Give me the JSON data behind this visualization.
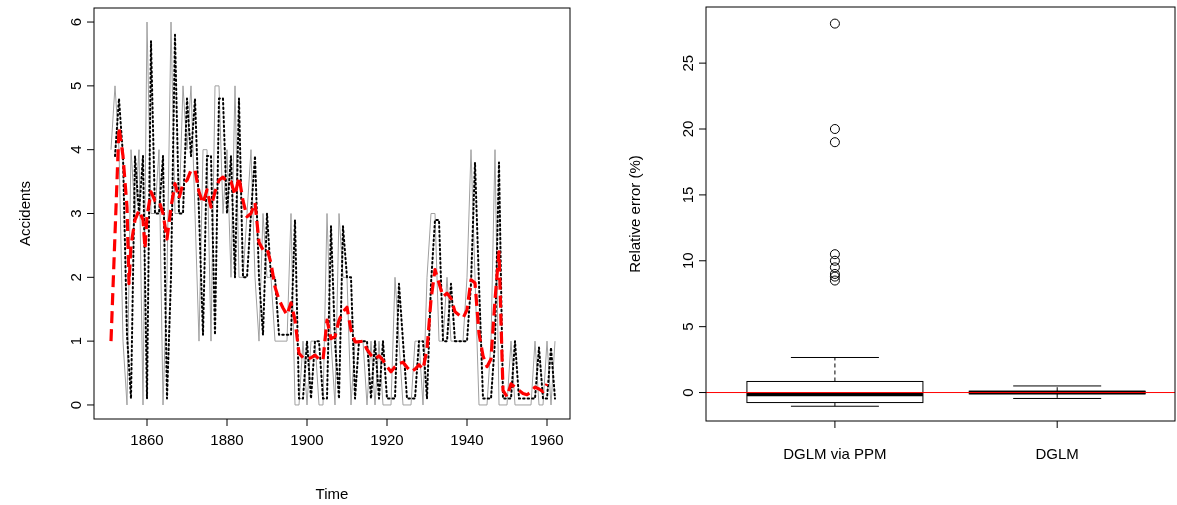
{
  "chart_data": [
    {
      "type": "line",
      "xlabel": "Time",
      "ylabel": "Accidents",
      "xlim": [
        1846.75,
        1965.75
      ],
      "xticks": [
        1860,
        1880,
        1900,
        1920,
        1940,
        1960
      ],
      "ylim": [
        -0.22,
        6.22
      ],
      "yticks": [
        0,
        1,
        2,
        3,
        4,
        5,
        6
      ],
      "x": [
        1851,
        1852,
        1853,
        1854,
        1855,
        1856,
        1857,
        1858,
        1859,
        1860,
        1861,
        1862,
        1863,
        1864,
        1865,
        1866,
        1867,
        1868,
        1869,
        1870,
        1871,
        1872,
        1873,
        1874,
        1875,
        1876,
        1877,
        1878,
        1879,
        1880,
        1881,
        1882,
        1883,
        1884,
        1885,
        1886,
        1887,
        1888,
        1889,
        1890,
        1891,
        1892,
        1893,
        1894,
        1895,
        1896,
        1897,
        1898,
        1899,
        1900,
        1901,
        1902,
        1903,
        1904,
        1905,
        1906,
        1907,
        1908,
        1909,
        1910,
        1911,
        1912,
        1913,
        1914,
        1915,
        1916,
        1917,
        1918,
        1919,
        1920,
        1921,
        1922,
        1923,
        1924,
        1925,
        1926,
        1927,
        1928,
        1929,
        1930,
        1931,
        1932,
        1933,
        1934,
        1935,
        1936,
        1937,
        1938,
        1939,
        1940,
        1941,
        1942,
        1943,
        1944,
        1945,
        1946,
        1947,
        1948,
        1949,
        1950,
        1951,
        1952,
        1953,
        1954,
        1955,
        1956,
        1957,
        1958,
        1959,
        1960,
        1961,
        1962
      ],
      "series": [
        {
          "color": "#a0a0a0",
          "line_style": "solid",
          "values": [
            4,
            5,
            4,
            1,
            0,
            4,
            3,
            4,
            0,
            6,
            3,
            3,
            4,
            0,
            2,
            6,
            3,
            3,
            5,
            4,
            5,
            3,
            1,
            4,
            4,
            1,
            5,
            5,
            3,
            4,
            2,
            5,
            2,
            2,
            3,
            4,
            2,
            1,
            3,
            2,
            2,
            1,
            1,
            1,
            1,
            3,
            0,
            0,
            1,
            0,
            1,
            1,
            0,
            0,
            3,
            1,
            0,
            3,
            2,
            2,
            0,
            1,
            1,
            1,
            0,
            1,
            0,
            1,
            0,
            0,
            0,
            2,
            1,
            0,
            0,
            0,
            1,
            1,
            0,
            2,
            3,
            3,
            1,
            1,
            2,
            1,
            1,
            1,
            1,
            2,
            4,
            2,
            0,
            0,
            0,
            1,
            4,
            0,
            0,
            0,
            1,
            0,
            0,
            0,
            0,
            0,
            1,
            0,
            0,
            1,
            0,
            1
          ]
        },
        {
          "color": "#000000",
          "line_style": "dotted",
          "x": [
            1852,
            1853,
            1854,
            1855,
            1856,
            1857,
            1858,
            1859,
            1860,
            1861,
            1862,
            1863,
            1864,
            1865,
            1866,
            1867,
            1868,
            1869,
            1870,
            1871,
            1872,
            1873,
            1874,
            1875,
            1876,
            1877,
            1878,
            1879,
            1880,
            1881,
            1882,
            1883,
            1884,
            1885,
            1886,
            1887,
            1888,
            1889,
            1890,
            1891,
            1892,
            1893,
            1894,
            1895,
            1896,
            1897,
            1898,
            1899,
            1900,
            1901,
            1902,
            1903,
            1904,
            1905,
            1906,
            1907,
            1908,
            1909,
            1910,
            1911,
            1912,
            1913,
            1914,
            1915,
            1916,
            1917,
            1918,
            1919,
            1920,
            1921,
            1922,
            1923,
            1924,
            1925,
            1926,
            1927,
            1928,
            1929,
            1930,
            1931,
            1932,
            1933,
            1934,
            1935,
            1936,
            1937,
            1938,
            1939,
            1940,
            1941,
            1942,
            1943,
            1944,
            1945,
            1946,
            1947,
            1948,
            1949,
            1950,
            1951,
            1952,
            1953,
            1954,
            1955,
            1956,
            1957,
            1958,
            1959,
            1960,
            1961,
            1962
          ],
          "values": [
            3.9,
            4.8,
            3.9,
            1.1,
            0.1,
            3.9,
            3,
            3.9,
            0.1,
            5.7,
            3,
            3,
            3.9,
            0.1,
            2,
            5.8,
            3,
            3,
            4.8,
            3.9,
            4.8,
            3,
            1.1,
            3.9,
            3.9,
            1.1,
            4.8,
            4.8,
            3,
            3.9,
            2,
            4.8,
            2,
            2,
            3,
            3.9,
            2,
            1.1,
            3,
            2,
            2,
            1.1,
            1.1,
            1.1,
            1.1,
            2.9,
            0.1,
            0.1,
            1,
            0.1,
            1,
            1,
            0.1,
            0.1,
            2.8,
            1,
            0.1,
            2.8,
            2,
            2,
            0.1,
            1,
            1,
            1,
            0.1,
            1,
            0.1,
            1,
            0.1,
            0.1,
            0.1,
            1.9,
            1,
            0.1,
            0.1,
            0.1,
            1,
            1,
            0.1,
            1.9,
            2.9,
            2.9,
            1,
            1,
            1.9,
            1,
            1,
            1,
            1,
            1.9,
            3.8,
            1.9,
            0.1,
            0.1,
            0.1,
            1,
            3.8,
            0.1,
            0.1,
            0.1,
            1,
            0.1,
            0.1,
            0.1,
            0.1,
            0.1,
            0.9,
            0.1,
            0.1,
            0.9,
            0.1
          ]
        },
        {
          "color": "#ff0000",
          "line_style": "dashed",
          "x": [
            1851,
            1853,
            1854,
            1855,
            1855.5,
            1856,
            1857,
            1858,
            1859,
            1859.5,
            1860,
            1861,
            1862,
            1863,
            1864,
            1865,
            1866,
            1867,
            1868,
            1869,
            1870,
            1871,
            1872,
            1873,
            1874,
            1875,
            1876,
            1877,
            1878,
            1879,
            1880,
            1881,
            1882,
            1883,
            1884,
            1885,
            1886,
            1887,
            1888,
            1889,
            1890,
            1891,
            1892,
            1893,
            1894,
            1895,
            1896,
            1897,
            1898,
            1899,
            1900,
            1901,
            1902,
            1903,
            1904,
            1905,
            1906,
            1907,
            1908,
            1909,
            1910,
            1911,
            1912,
            1913,
            1914,
            1915,
            1916,
            1917,
            1918,
            1919,
            1920,
            1921,
            1922,
            1923,
            1924,
            1925,
            1926,
            1927,
            1928,
            1929,
            1930,
            1931,
            1932,
            1933,
            1934,
            1935,
            1936,
            1937,
            1938,
            1939,
            1940,
            1941,
            1942,
            1943,
            1944,
            1945,
            1946,
            1947,
            1948,
            1949,
            1950,
            1951,
            1952,
            1953,
            1954,
            1955,
            1956,
            1957,
            1958,
            1959,
            1960
          ],
          "values": [
            1,
            4.35,
            3.9,
            3.1,
            1.9,
            2.5,
            2.9,
            3.05,
            2.9,
            2.45,
            2.95,
            3.34,
            3.2,
            3.2,
            3,
            2.6,
            3.1,
            3.47,
            3.24,
            3.47,
            3.52,
            3.68,
            3.68,
            3.34,
            3.16,
            3.37,
            3.1,
            3.34,
            3.52,
            3.57,
            3.5,
            3.5,
            3.29,
            3.57,
            3.2,
            2.95,
            3,
            3.17,
            2.55,
            2.43,
            2.45,
            2.22,
            1.85,
            1.65,
            1.52,
            1.41,
            1.6,
            1.33,
            0.81,
            0.74,
            0.72,
            0.74,
            0.78,
            0.72,
            0.7,
            1.33,
            1.04,
            1.07,
            1.33,
            1.46,
            1.53,
            1.17,
            0.99,
            0.99,
            1,
            0.87,
            0.78,
            0.72,
            0.77,
            0.7,
            0.6,
            0.52,
            0.6,
            0.65,
            0.67,
            0.59,
            0.52,
            0.56,
            0.63,
            0.56,
            0.87,
            1.65,
            2.12,
            1.91,
            1.7,
            1.75,
            1.67,
            1.46,
            1.41,
            1.36,
            1.49,
            1.96,
            1.91,
            1.12,
            0.77,
            0.6,
            0.72,
            1.65,
            2.4,
            0.23,
            0.13,
            0.33,
            0.28,
            0.23,
            0.18,
            0.16,
            0.2,
            0.28,
            0.25,
            0.21,
            0.33
          ]
        }
      ]
    },
    {
      "type": "box",
      "ylabel": "Relative error (%)",
      "categories": [
        "DGLM via PPM",
        "DGLM"
      ],
      "ylim": [
        -2.16,
        29.26
      ],
      "yticks": [
        0,
        5,
        10,
        15,
        20,
        25
      ],
      "boxes": [
        {
          "low": -1.04,
          "q1": -0.76,
          "median": -0.14,
          "q3": 0.84,
          "high": 2.66,
          "outliers": [
            28,
            20,
            19,
            10.5,
            10,
            9.5,
            9,
            8.8,
            8.5
          ]
        },
        {
          "low": -0.45,
          "q1": -0.1,
          "median": 0,
          "q3": 0.1,
          "high": 0.5
        }
      ],
      "ref_lines": [
        {
          "axis": "y",
          "value": 0,
          "color": "#ff0000"
        }
      ]
    }
  ]
}
